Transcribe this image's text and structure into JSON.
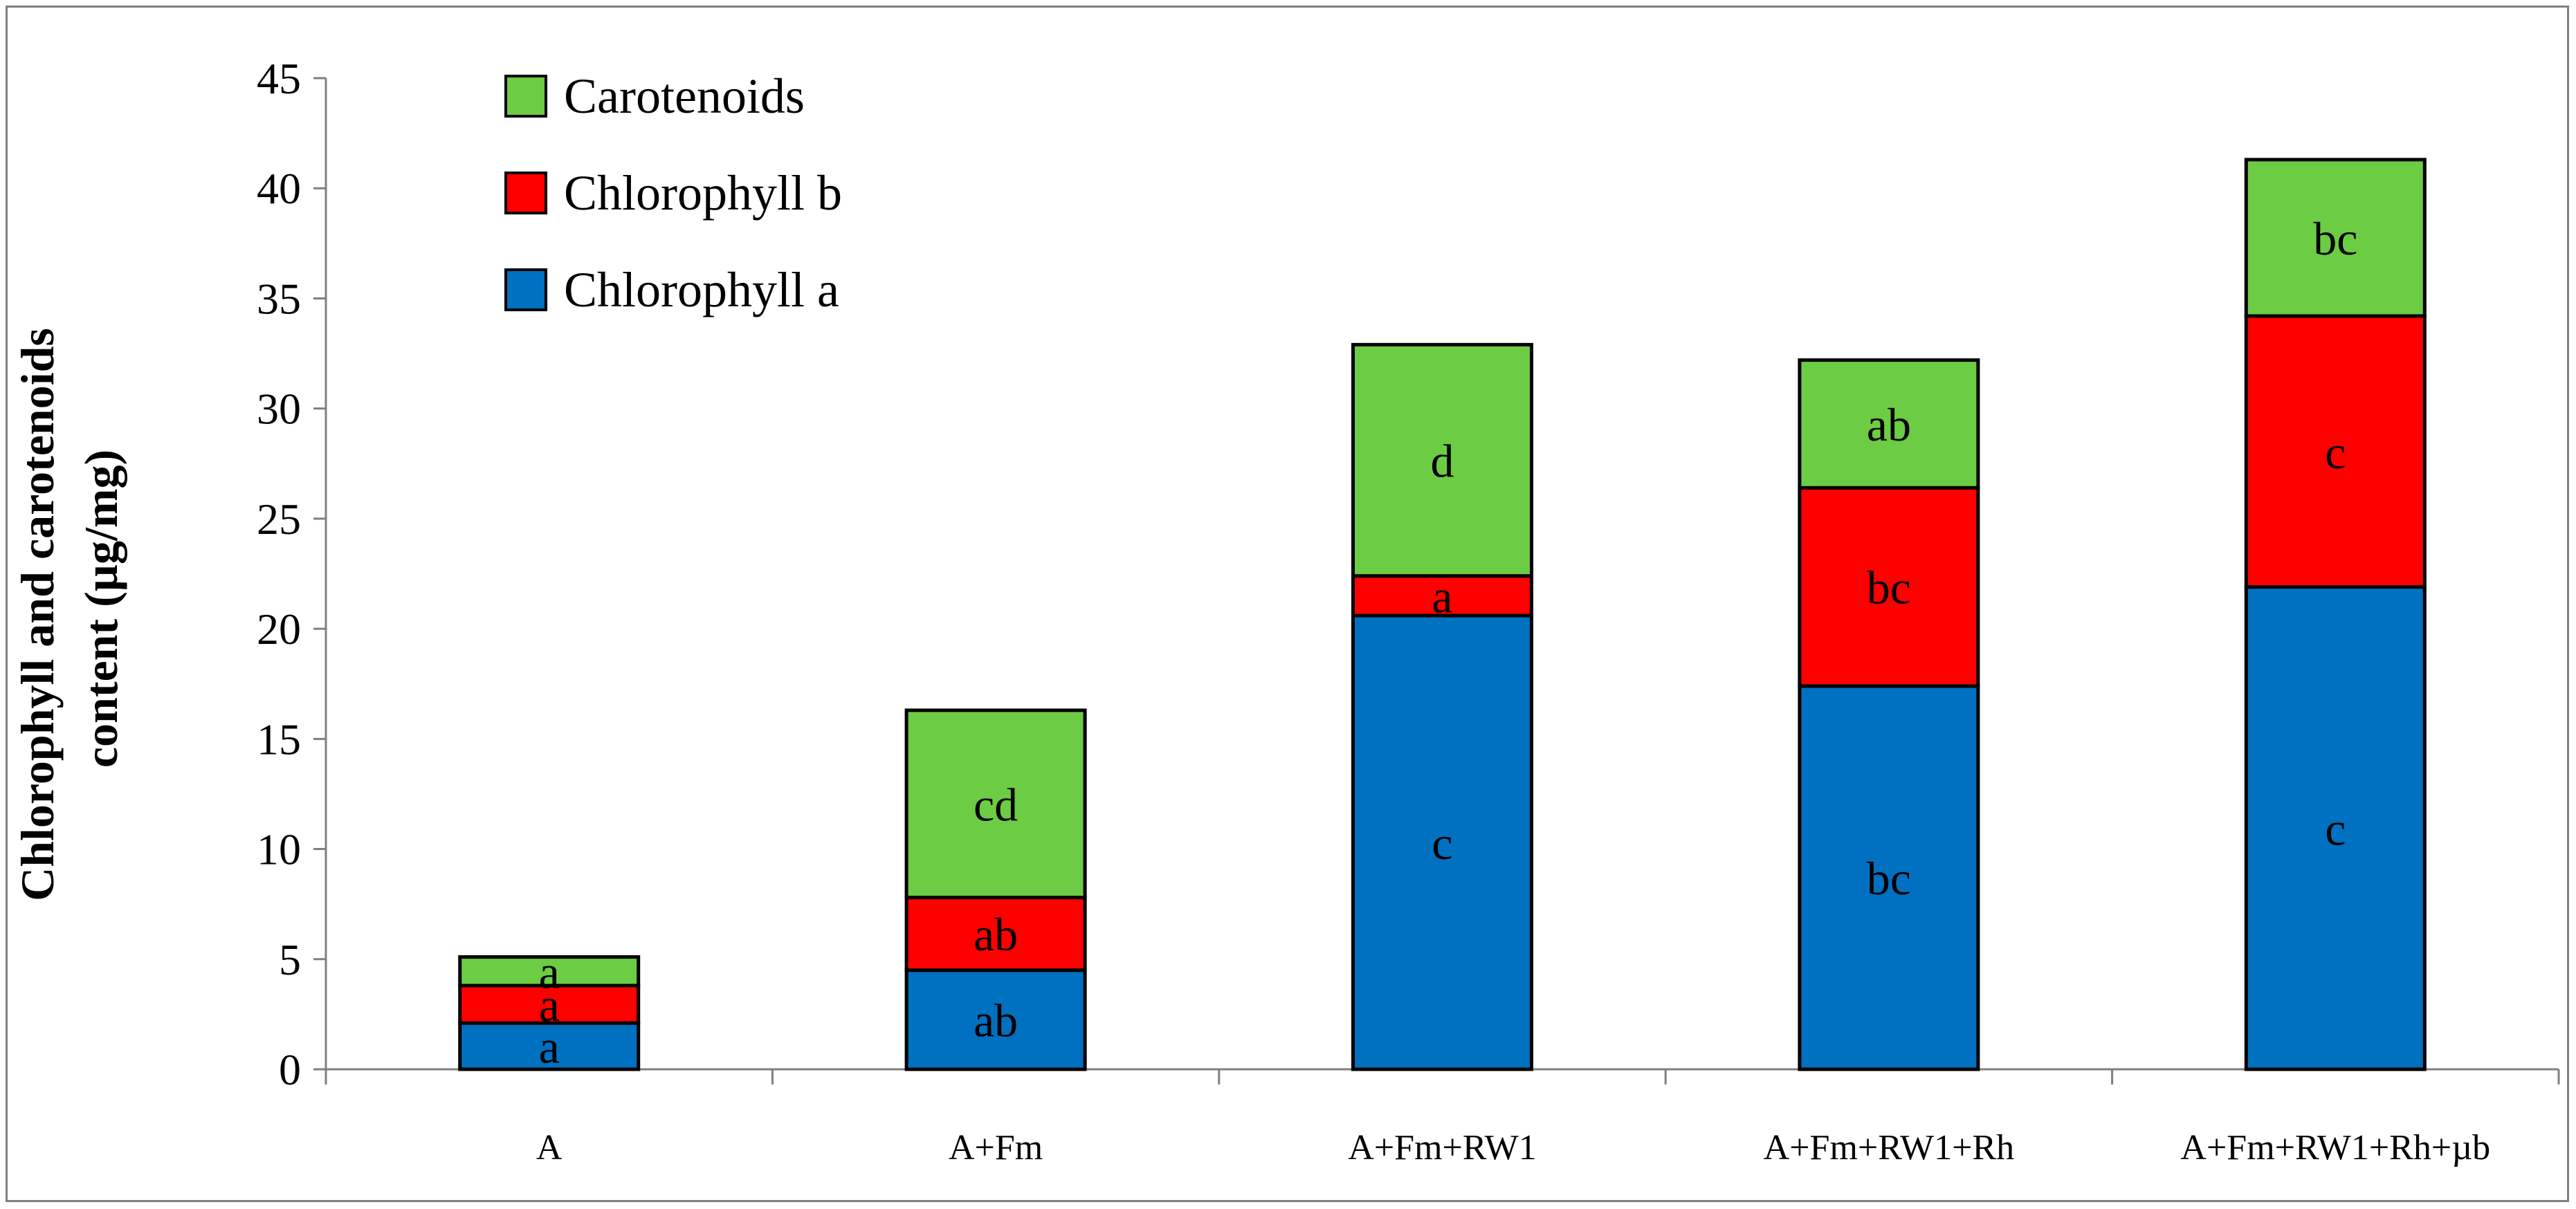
{
  "chart_data": {
    "type": "bar",
    "stacked": true,
    "title": "",
    "xlabel": "",
    "ylabel_lines": [
      "Chlorophyll and carotenoids",
      "content (µg/mg)"
    ],
    "ylim": [
      0,
      45
    ],
    "yticks": [
      0,
      5,
      10,
      15,
      20,
      25,
      30,
      35,
      40,
      45
    ],
    "grid": false,
    "legend_position": "top-left",
    "categories": [
      "A",
      "A+Fm",
      "A+Fm+RW1",
      "A+Fm+RW1+Rh",
      "A+Fm+RW1+Rh+µb"
    ],
    "series": [
      {
        "name": "Chlorophyll a",
        "color": "#0070c0",
        "values": [
          2.1,
          4.5,
          20.6,
          17.4,
          21.9
        ],
        "labels": [
          "a",
          "ab",
          "c",
          "bc",
          "c"
        ]
      },
      {
        "name": "Chlorophyll b",
        "color": "#ff0000",
        "values": [
          1.7,
          3.3,
          1.8,
          9.0,
          12.3
        ],
        "labels": [
          "a",
          "ab",
          "a",
          "bc",
          "c"
        ]
      },
      {
        "name": "Carotenoids",
        "color": "#6ccc44",
        "values": [
          1.3,
          8.5,
          10.5,
          5.8,
          7.1
        ],
        "labels": [
          "a",
          "cd",
          "d",
          "ab",
          "bc"
        ]
      }
    ],
    "legend_order": [
      "Carotenoids",
      "Chlorophyll b",
      "Chlorophyll a"
    ]
  }
}
